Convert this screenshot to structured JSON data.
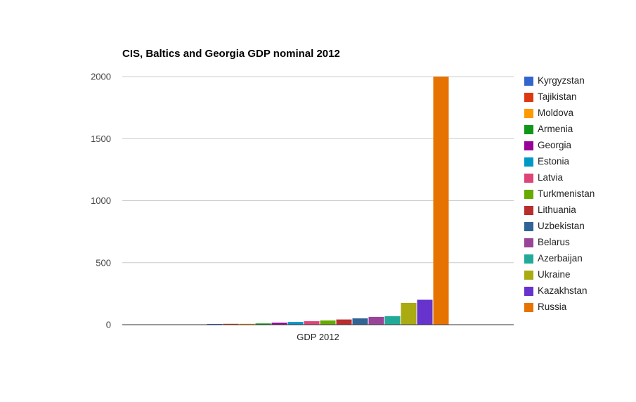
{
  "chart_data": {
    "type": "bar",
    "title": "CIS, Baltics and Georgia GDP nominal 2012",
    "categories": [
      "GDP 2012"
    ],
    "ylim": [
      0,
      2000
    ],
    "yticks": [
      0,
      500,
      1000,
      1500,
      2000
    ],
    "grid": true,
    "legend_position": "right",
    "series": [
      {
        "name": "Kyrgyzstan",
        "values": [
          6
        ],
        "color": "#3366cc"
      },
      {
        "name": "Tajikistan",
        "values": [
          7
        ],
        "color": "#dc3912"
      },
      {
        "name": "Moldova",
        "values": [
          7
        ],
        "color": "#ff9900"
      },
      {
        "name": "Armenia",
        "values": [
          10
        ],
        "color": "#109618"
      },
      {
        "name": "Georgia",
        "values": [
          16
        ],
        "color": "#990099"
      },
      {
        "name": "Estonia",
        "values": [
          22
        ],
        "color": "#0099c6"
      },
      {
        "name": "Latvia",
        "values": [
          28
        ],
        "color": "#dd4477"
      },
      {
        "name": "Turkmenistan",
        "values": [
          34
        ],
        "color": "#66aa00"
      },
      {
        "name": "Lithuania",
        "values": [
          42
        ],
        "color": "#b82e2e"
      },
      {
        "name": "Uzbekistan",
        "values": [
          51
        ],
        "color": "#316395"
      },
      {
        "name": "Belarus",
        "values": [
          63
        ],
        "color": "#994499"
      },
      {
        "name": "Azerbaijan",
        "values": [
          69
        ],
        "color": "#22aa99"
      },
      {
        "name": "Ukraine",
        "values": [
          176
        ],
        "color": "#aaaa11"
      },
      {
        "name": "Kazakhstan",
        "values": [
          201
        ],
        "color": "#6633cc"
      },
      {
        "name": "Russia",
        "values": [
          2000
        ],
        "color": "#e67300"
      }
    ]
  }
}
